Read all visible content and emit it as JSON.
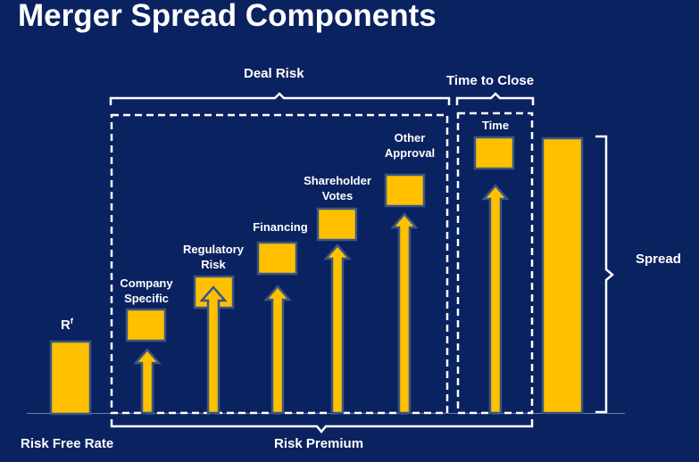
{
  "title": "Merger Spread Components",
  "colors": {
    "background": "#0b2260",
    "bar_fill": "#ffc000",
    "bar_stroke": "#3a5683",
    "line": "#ffffff"
  },
  "labels": {
    "deal_risk": "Deal Risk",
    "time_to_close": "Time to Close",
    "spread": "Spread",
    "risk_free_rate": "Risk Free Rate",
    "risk_premium": "Risk Premium",
    "rf_symbol": "R",
    "rf_superscript": "f"
  },
  "components": [
    {
      "line1": "Company",
      "line2": "Specific"
    },
    {
      "line1": "Regulatory",
      "line2": "Risk"
    },
    {
      "line1": "Financing",
      "line2": ""
    },
    {
      "line1": "Shareholder",
      "line2": "Votes"
    },
    {
      "line1": "Other",
      "line2": "Approval"
    },
    {
      "line1": "Time",
      "line2": ""
    }
  ]
}
